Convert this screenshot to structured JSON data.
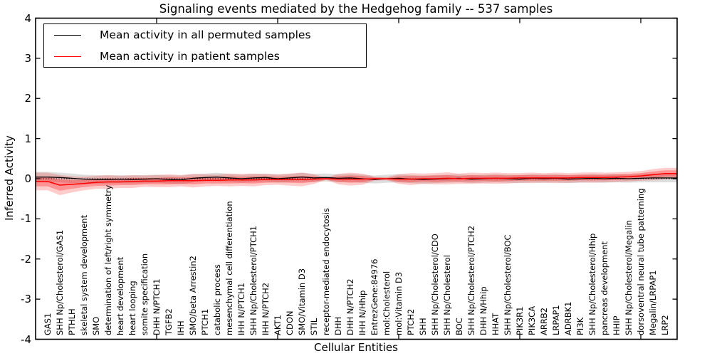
{
  "figure": {
    "title": "Signaling events mediated by the Hedgehog family -- 537 samples",
    "xlabel": "Cellular Entities",
    "ylabel": "Inferred Activity"
  },
  "legend": {
    "entries": [
      {
        "label": "Mean activity in all permuted samples",
        "color": "#000000"
      },
      {
        "label": "Mean activity in patient samples",
        "color": "#ff0000"
      }
    ],
    "position": "upper left"
  },
  "colors": {
    "permuted_line": "#000000",
    "permuted_band": "rgba(0,0,0,0.13)",
    "patient_line": "#ff0000",
    "patient_band_outer": "rgba(255,0,0,0.20)",
    "patient_band_inner": "rgba(255,0,0,0.28)",
    "axis": "#000000",
    "background": "#ffffff"
  },
  "chart_data": {
    "type": "line",
    "title": "Signaling events mediated by the Hedgehog family -- 537 samples",
    "xlabel": "Cellular Entities",
    "ylabel": "Inferred Activity",
    "ylim": [
      -4,
      4
    ],
    "yticks": [
      4,
      3,
      2,
      1,
      0,
      -1,
      -2,
      -3,
      -4
    ],
    "xticks_values": [
      10,
      20,
      30,
      40,
      50
    ],
    "x_range": [
      0,
      53
    ],
    "grid": false,
    "zero_line_dotted": true,
    "legend_position": "upper left",
    "categories": [
      "GAS1",
      "SHH Np/Cholesterol/GAS1",
      "PTHLH",
      "skeletal system development",
      "SMO",
      "determination of left/right symmetry",
      "heart development",
      "heart looping",
      "somite specification",
      "DHH N/PTCH1",
      "TGFB2",
      "IHH",
      "SMO/beta Arrestin2",
      "PTCH1",
      "catabolic process",
      "mesenchymal cell differentiation",
      "IHH N/PTCH1",
      "SHH Np/Cholesterol/PTCH1",
      "IHH N/PTCH2",
      "AKT1",
      "CDON",
      "SMO/Vitamin D3",
      "STIL",
      "receptor-mediated endocytosis",
      "DHH",
      "DHH N/PTCH2",
      "IHH N/Hhip",
      "EntrezGene:84976",
      "mol:Cholesterol",
      "mol:Vitamin D3",
      "PTCH2",
      "SHH",
      "SHH Np/Cholesterol/CDO",
      "SHH Np/Cholesterol",
      "BOC",
      "SHH Np/Cholesterol/PTCH2",
      "DHH N/Hhip",
      "HHAT",
      "SHH Np/Cholesterol/BOC",
      "PIK3R1",
      "PIK3CA",
      "ARRB2",
      "LRPAP1",
      "ADRBK1",
      "PI3K",
      "SHH Np/Cholesterol/Hhip",
      "pancreas development",
      "HHIP",
      "SHH Np/Cholesterol/Megalin",
      "dorsoventral neural tube patterning",
      "Megalin/LRPAP1",
      "LRP2"
    ],
    "series": [
      {
        "name": "Mean activity in all permuted samples",
        "color": "#000000",
        "values": [
          0.04,
          0.03,
          0.01,
          -0.01,
          -0.02,
          -0.02,
          -0.01,
          -0.02,
          -0.01,
          0.0,
          -0.02,
          -0.03,
          0.01,
          0.03,
          0.04,
          0.02,
          0.0,
          0.02,
          0.03,
          0.0,
          0.02,
          0.04,
          0.02,
          0.03,
          0.01,
          0.02,
          0.0,
          -0.02,
          0.0,
          0.01,
          -0.01,
          -0.02,
          -0.01,
          0.0,
          0.01,
          -0.01,
          0.0,
          0.01,
          0.0,
          -0.01,
          0.01,
          0.0,
          0.01,
          -0.01,
          0.0,
          0.01,
          0.0,
          0.01,
          0.0,
          0.01,
          0.02,
          0.02
        ],
        "band_std": [
          0.13,
          0.12,
          0.12,
          0.11,
          0.11,
          0.1,
          0.1,
          0.1,
          0.1,
          0.1,
          0.1,
          0.11,
          0.1,
          0.1,
          0.11,
          0.1,
          0.1,
          0.1,
          0.1,
          0.1,
          0.1,
          0.11,
          0.1,
          0.1,
          0.1,
          0.1,
          0.1,
          0.1,
          0.1,
          0.1,
          0.1,
          0.1,
          0.1,
          0.1,
          0.1,
          0.1,
          0.1,
          0.1,
          0.1,
          0.1,
          0.1,
          0.1,
          0.1,
          0.1,
          0.1,
          0.1,
          0.1,
          0.1,
          0.1,
          0.1,
          0.11,
          0.11
        ]
      },
      {
        "name": "Mean activity in patient samples",
        "color": "#ff0000",
        "values": [
          -0.07,
          -0.16,
          -0.14,
          -0.12,
          -0.09,
          -0.08,
          -0.08,
          -0.07,
          -0.06,
          -0.06,
          -0.05,
          -0.05,
          -0.05,
          -0.04,
          -0.04,
          -0.03,
          -0.03,
          -0.03,
          -0.02,
          -0.02,
          -0.02,
          -0.02,
          -0.01,
          0.0,
          -0.01,
          -0.01,
          -0.01,
          0.0,
          0.0,
          -0.01,
          -0.01,
          0.0,
          0.0,
          0.01,
          0.0,
          0.01,
          0.01,
          0.01,
          0.01,
          0.02,
          0.02,
          0.02,
          0.02,
          0.02,
          0.03,
          0.03,
          0.03,
          0.04,
          0.05,
          0.07,
          0.1,
          0.13
        ],
        "band_std_outer": [
          0.22,
          0.25,
          0.2,
          0.17,
          0.16,
          0.17,
          0.15,
          0.16,
          0.14,
          0.15,
          0.16,
          0.14,
          0.17,
          0.15,
          0.14,
          0.16,
          0.15,
          0.16,
          0.14,
          0.13,
          0.15,
          0.17,
          0.12,
          0.03,
          0.13,
          0.16,
          0.14,
          0.05,
          0.04,
          0.12,
          0.15,
          0.13,
          0.14,
          0.15,
          0.13,
          0.14,
          0.13,
          0.14,
          0.13,
          0.12,
          0.13,
          0.12,
          0.13,
          0.12,
          0.12,
          0.13,
          0.12,
          0.12,
          0.12,
          0.12,
          0.14,
          0.14
        ],
        "band_std_inner": [
          0.12,
          0.14,
          0.11,
          0.09,
          0.09,
          0.09,
          0.08,
          0.09,
          0.08,
          0.08,
          0.09,
          0.08,
          0.09,
          0.08,
          0.08,
          0.09,
          0.08,
          0.09,
          0.08,
          0.07,
          0.08,
          0.09,
          0.07,
          0.02,
          0.07,
          0.09,
          0.08,
          0.03,
          0.02,
          0.07,
          0.08,
          0.07,
          0.08,
          0.08,
          0.07,
          0.08,
          0.07,
          0.08,
          0.07,
          0.07,
          0.07,
          0.07,
          0.07,
          0.07,
          0.07,
          0.07,
          0.07,
          0.07,
          0.07,
          0.07,
          0.08,
          0.08
        ]
      }
    ]
  }
}
